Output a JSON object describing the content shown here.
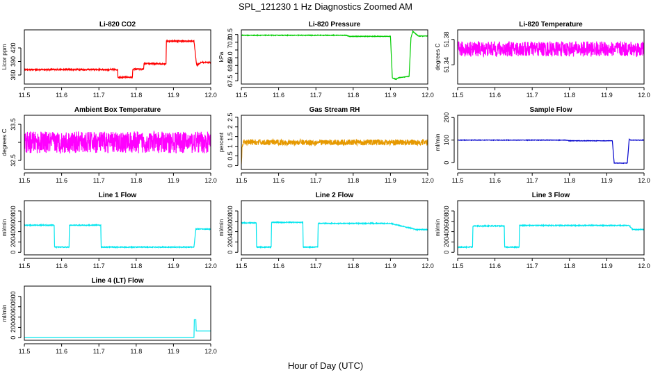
{
  "figure": {
    "title": "SPL_121230  1 Hz Diagnostics Zoomed AM",
    "xlabel": "Hour of Day (UTC)"
  },
  "chart_data": [
    {
      "type": "line",
      "title": "Li-820 CO2",
      "ylabel": "Licor ppm",
      "color": "#ff0000",
      "xlim": [
        11.5,
        12.0
      ],
      "ylim": [
        340,
        460
      ],
      "yticks": [
        360,
        390,
        420
      ],
      "x": [
        11.5,
        11.75,
        11.751,
        11.79,
        11.791,
        11.82,
        11.821,
        11.88,
        11.881,
        11.955,
        11.962,
        11.975,
        12.0
      ],
      "y": [
        372,
        372,
        355,
        355,
        373,
        373,
        385,
        385,
        435,
        435,
        382,
        388,
        388
      ],
      "noise": 1.5
    },
    {
      "type": "line",
      "title": "Li-820 Pressure",
      "ylabel": "kPa",
      "color": "#00cc00",
      "xlim": [
        11.5,
        12.0
      ],
      "ylim": [
        67.3,
        70.8
      ],
      "yticks": [
        67.5,
        68.0,
        68.5,
        69.0,
        69.5,
        70.0,
        70.5
      ],
      "ytick_labels": [
        "67.5",
        "",
        "68.5",
        "69.0",
        "",
        "70.0",
        "70.5"
      ],
      "x": [
        11.5,
        11.78,
        11.79,
        11.9,
        11.905,
        11.915,
        11.92,
        11.95,
        11.955,
        11.96,
        11.975,
        12.0
      ],
      "y": [
        70.45,
        70.45,
        70.38,
        70.38,
        67.7,
        67.6,
        67.7,
        67.8,
        70.3,
        70.7,
        70.4,
        70.4
      ],
      "noise": 0.02
    },
    {
      "type": "line",
      "title": "Li-820 Temperature",
      "ylabel": "degrees C",
      "color": "#ff00ff",
      "xlim": [
        11.5,
        12.0
      ],
      "ylim": [
        51.31,
        51.395
      ],
      "yticks": [
        51.34,
        51.38
      ],
      "x": [
        11.5,
        12.0
      ],
      "y": [
        51.365,
        51.365
      ],
      "noise": 0.012
    },
    {
      "type": "line",
      "title": "Ambient Box Temperature",
      "ylabel": "degrees C",
      "color": "#ff00ff",
      "xlim": [
        11.5,
        12.0
      ],
      "ylim": [
        32.25,
        33.75
      ],
      "yticks": [
        32.5,
        33.0,
        33.5
      ],
      "ytick_labels": [
        "32.5",
        "",
        "33.5"
      ],
      "x": [
        11.5,
        12.0
      ],
      "y": [
        33.0,
        33.0
      ],
      "noise": 0.3
    },
    {
      "type": "line",
      "title": "Gas Stream RH",
      "ylabel": "percent",
      "color": "#e69900",
      "xlim": [
        11.5,
        12.0
      ],
      "ylim": [
        -0.2,
        2.6
      ],
      "yticks": [
        0.0,
        0.5,
        1.0,
        1.5,
        2.0,
        2.5
      ],
      "x": [
        11.5,
        11.502,
        11.507,
        12.0
      ],
      "y": [
        0.0,
        1.0,
        1.2,
        1.2
      ],
      "noise": 0.15
    },
    {
      "type": "line",
      "title": "Sample Flow",
      "ylabel": "ml/min",
      "color": "#0000cc",
      "xlim": [
        11.5,
        12.0
      ],
      "ylim": [
        -30,
        210
      ],
      "yticks": [
        0,
        100,
        200
      ],
      "x": [
        11.5,
        11.79,
        11.8,
        11.915,
        11.92,
        11.955,
        11.96,
        11.965,
        12.0
      ],
      "y": [
        100,
        100,
        97,
        97,
        -2,
        -2,
        102,
        100,
        100
      ],
      "noise": 1
    },
    {
      "type": "line",
      "title": "Line 1 Flow",
      "ylabel": "ml/min",
      "color": "#00e5ee",
      "xlim": [
        11.5,
        12.0
      ],
      "ylim": [
        -50,
        1000
      ],
      "yticks": [
        0,
        200,
        400,
        600,
        800
      ],
      "x": [
        11.5,
        11.58,
        11.581,
        11.62,
        11.621,
        11.705,
        11.706,
        11.955,
        11.96,
        12.0
      ],
      "y": [
        525,
        525,
        100,
        100,
        525,
        525,
        100,
        100,
        450,
        450
      ],
      "noise": 8
    },
    {
      "type": "line",
      "title": "Line 2 Flow",
      "ylabel": "ml/min",
      "color": "#00e5ee",
      "xlim": [
        11.5,
        12.0
      ],
      "ylim": [
        -50,
        1000
      ],
      "yticks": [
        0,
        200,
        400,
        600,
        800
      ],
      "x": [
        11.5,
        11.54,
        11.541,
        11.58,
        11.581,
        11.665,
        11.666,
        11.705,
        11.706,
        11.9,
        11.97,
        12.0
      ],
      "y": [
        570,
        570,
        100,
        100,
        580,
        580,
        100,
        100,
        560,
        560,
        440,
        440
      ],
      "noise": 8
    },
    {
      "type": "line",
      "title": "Line 3 Flow",
      "ylabel": "ml/min",
      "color": "#00e5ee",
      "xlim": [
        11.5,
        12.0
      ],
      "ylim": [
        -50,
        1000
      ],
      "yticks": [
        0,
        200,
        400,
        600,
        800
      ],
      "x": [
        11.5,
        11.54,
        11.541,
        11.625,
        11.626,
        11.665,
        11.666,
        11.96,
        11.97,
        12.0
      ],
      "y": [
        100,
        100,
        510,
        510,
        100,
        100,
        520,
        520,
        440,
        440
      ],
      "noise": 8
    },
    {
      "type": "line",
      "title": "Line 4 (LT) Flow",
      "ylabel": "ml/min",
      "color": "#00e5ee",
      "xlim": [
        11.5,
        12.0
      ],
      "ylim": [
        -50,
        1000
      ],
      "yticks": [
        0,
        200,
        400,
        600,
        800
      ],
      "x": [
        11.5,
        11.955,
        11.956,
        11.96,
        11.961,
        12.0
      ],
      "y": [
        5,
        5,
        350,
        350,
        130,
        130
      ],
      "noise": 0
    }
  ],
  "shared_x": {
    "ticks": [
      11.5,
      11.6,
      11.7,
      11.8,
      11.9,
      12.0
    ],
    "labels": [
      "11.5",
      "11.6",
      "11.7",
      "11.8",
      "11.9",
      "12.0"
    ]
  }
}
